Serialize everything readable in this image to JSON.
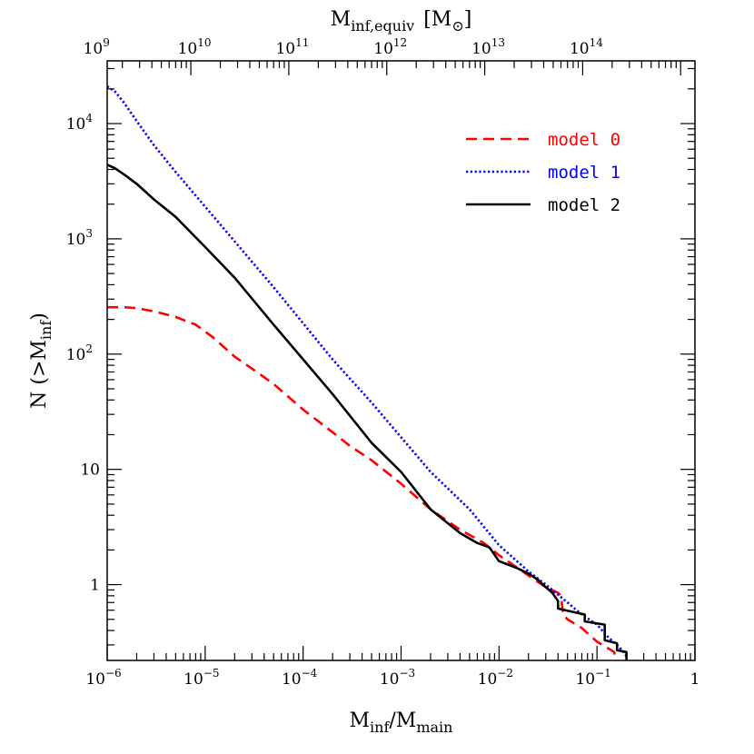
{
  "chart_data": {
    "type": "line",
    "xscale": "log",
    "yscale": "log",
    "xlim": [
      1e-06,
      1
    ],
    "ylim": [
      0.22,
      35000
    ],
    "xlabel": {
      "main": "M",
      "sub1": "inf",
      "sep": "/M",
      "sub2": "main"
    },
    "ylabel": {
      "prefix": "N (>M",
      "sub": "inf",
      "suffix": ")"
    },
    "top_axis": {
      "label": {
        "main": "M",
        "sub": "inf,equiv",
        "bracket_open": "[M",
        "bracket_close": "]"
      },
      "ticks": [
        {
          "base": "10",
          "exp": "9",
          "value": 1000000000.0
        },
        {
          "base": "10",
          "exp": "10",
          "value": 10000000000.0
        },
        {
          "base": "10",
          "exp": "11",
          "value": 100000000000.0
        },
        {
          "base": "10",
          "exp": "12",
          "value": 1000000000000.0
        },
        {
          "base": "10",
          "exp": "13",
          "value": 10000000000000.0
        },
        {
          "base": "10",
          "exp": "14",
          "value": 100000000000000.0
        }
      ],
      "conversion_factor": 1400000000000000.0
    },
    "x_ticks": [
      {
        "base": "10",
        "exp": "−6",
        "value": 1e-06
      },
      {
        "base": "10",
        "exp": "−5",
        "value": 1e-05
      },
      {
        "base": "10",
        "exp": "−4",
        "value": 0.0001
      },
      {
        "base": "10",
        "exp": "−3",
        "value": 0.001
      },
      {
        "base": "10",
        "exp": "−2",
        "value": 0.01
      },
      {
        "base": "10",
        "exp": "−1",
        "value": 0.1
      },
      {
        "base": "1",
        "exp": "",
        "value": 1
      }
    ],
    "y_ticks": [
      {
        "base": "1",
        "exp": "",
        "value": 1
      },
      {
        "base": "10",
        "exp": "",
        "value": 10
      },
      {
        "base": "10",
        "exp": "2",
        "value": 100
      },
      {
        "base": "10",
        "exp": "3",
        "value": 1000
      },
      {
        "base": "10",
        "exp": "4",
        "value": 10000
      }
    ],
    "legend_position": "top-right",
    "series": [
      {
        "name": "model 0",
        "color": "#ff0000",
        "style": "dashed",
        "x": [
          1e-06,
          1.5e-06,
          2e-06,
          3e-06,
          5e-06,
          8e-06,
          1.2e-05,
          2e-05,
          3e-05,
          5e-05,
          0.0001,
          0.0002,
          0.0003,
          0.0005,
          0.001,
          0.002,
          0.004,
          0.007,
          0.01,
          0.02,
          0.03,
          0.04,
          0.043,
          0.045,
          0.05,
          0.07,
          0.1,
          0.13,
          0.15,
          0.155
        ],
        "y": [
          255,
          255,
          250,
          235,
          210,
          180,
          140,
          95,
          75,
          55,
          33,
          21,
          16,
          12,
          7.5,
          4.5,
          3,
          2.3,
          1.8,
          1.2,
          0.95,
          0.85,
          0.8,
          0.55,
          0.5,
          0.42,
          0.32,
          0.28,
          0.26,
          0.22
        ]
      },
      {
        "name": "model 1",
        "color": "#0000ff",
        "style": "dotted",
        "x": [
          1e-06,
          1.2e-06,
          1.5e-06,
          2e-06,
          3e-06,
          5e-06,
          1e-05,
          2e-05,
          5e-05,
          0.0001,
          0.0002,
          0.0005,
          0.001,
          0.002,
          0.005,
          0.01,
          0.02,
          0.03,
          0.05,
          0.07,
          0.1,
          0.13,
          0.16,
          0.18,
          0.2
        ],
        "y": [
          21000,
          19000,
          15000,
          10500,
          6500,
          3800,
          1900,
          950,
          380,
          185,
          90,
          38,
          19,
          9.5,
          4.5,
          2.2,
          1.3,
          1.0,
          0.7,
          0.55,
          0.45,
          0.35,
          0.3,
          0.27,
          0.24
        ]
      },
      {
        "name": "model 2",
        "color": "#000000",
        "style": "solid",
        "x": [
          1e-06,
          1.2e-06,
          1.5e-06,
          2e-06,
          3e-06,
          5e-06,
          1e-05,
          2e-05,
          5e-05,
          0.0001,
          0.0002,
          0.0005,
          0.001,
          0.002,
          0.004,
          0.006,
          0.008,
          0.01,
          0.015,
          0.02,
          0.025,
          0.03,
          0.035,
          0.04,
          0.04,
          0.075,
          0.075,
          0.12,
          0.12,
          0.16,
          0.16,
          0.2,
          0.2
        ],
        "y": [
          4400,
          4100,
          3600,
          3000,
          2200,
          1550,
          850,
          460,
          180,
          90,
          45,
          17,
          9.5,
          4.5,
          2.8,
          2.3,
          2.1,
          1.6,
          1.4,
          1.25,
          1.1,
          0.95,
          0.85,
          0.72,
          0.62,
          0.55,
          0.48,
          0.45,
          0.33,
          0.31,
          0.27,
          0.26,
          0.22
        ]
      }
    ]
  }
}
